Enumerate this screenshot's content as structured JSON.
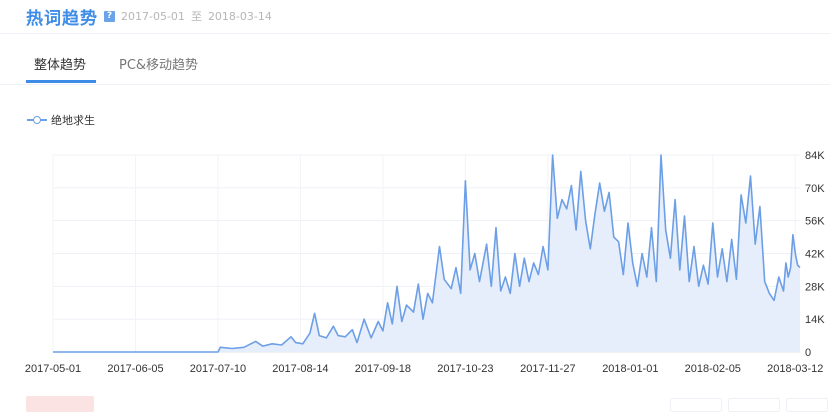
{
  "header": {
    "title": "热词趋势",
    "help_icon": "?",
    "start_date": "2017-05-01",
    "to_text": "至",
    "end_date": "2018-03-14"
  },
  "tabs": [
    {
      "label": "整体趋势",
      "active": true
    },
    {
      "label": "PC&移动趋势",
      "active": false
    }
  ],
  "colors": {
    "accent": "#3d8ce8",
    "series": "#6c9fe6",
    "fill": "#e7eefb"
  },
  "chart_data": {
    "type": "area",
    "title": "",
    "xlabel": "",
    "ylabel": "",
    "x_ticks": [
      "2017-05-01",
      "2017-06-05",
      "2017-07-10",
      "2017-08-14",
      "2017-09-18",
      "2017-10-23",
      "2017-11-27",
      "2018-01-01",
      "2018-02-05",
      "2018-03-12"
    ],
    "y_ticks": [
      "0",
      "14K",
      "28K",
      "42K",
      "56K",
      "70K",
      "84K"
    ],
    "ylim": [
      0,
      84000
    ],
    "xlim": [
      "2017-05-01",
      "2018-03-14"
    ],
    "grid": true,
    "legend": "top-left",
    "series": [
      {
        "name": "绝地求生",
        "values": [
          {
            "x": "2017-05-01",
            "y": 0
          },
          {
            "x": "2017-07-10",
            "y": 0
          },
          {
            "x": "2017-07-11",
            "y": 2000
          },
          {
            "x": "2017-07-16",
            "y": 1500
          },
          {
            "x": "2017-07-21",
            "y": 2000
          },
          {
            "x": "2017-07-26",
            "y": 4500
          },
          {
            "x": "2017-07-29",
            "y": 2500
          },
          {
            "x": "2017-08-02",
            "y": 3500
          },
          {
            "x": "2017-08-06",
            "y": 3000
          },
          {
            "x": "2017-08-10",
            "y": 6500
          },
          {
            "x": "2017-08-12",
            "y": 4000
          },
          {
            "x": "2017-08-15",
            "y": 3500
          },
          {
            "x": "2017-08-18",
            "y": 8000
          },
          {
            "x": "2017-08-20",
            "y": 16500
          },
          {
            "x": "2017-08-22",
            "y": 7000
          },
          {
            "x": "2017-08-25",
            "y": 6000
          },
          {
            "x": "2017-08-28",
            "y": 11000
          },
          {
            "x": "2017-08-30",
            "y": 7000
          },
          {
            "x": "2017-09-02",
            "y": 6500
          },
          {
            "x": "2017-09-05",
            "y": 9500
          },
          {
            "x": "2017-09-07",
            "y": 4000
          },
          {
            "x": "2017-09-10",
            "y": 14000
          },
          {
            "x": "2017-09-13",
            "y": 6000
          },
          {
            "x": "2017-09-16",
            "y": 13000
          },
          {
            "x": "2017-09-18",
            "y": 9000
          },
          {
            "x": "2017-09-20",
            "y": 21000
          },
          {
            "x": "2017-09-22",
            "y": 12000
          },
          {
            "x": "2017-09-24",
            "y": 28000
          },
          {
            "x": "2017-09-26",
            "y": 13000
          },
          {
            "x": "2017-09-28",
            "y": 20000
          },
          {
            "x": "2017-10-01",
            "y": 17000
          },
          {
            "x": "2017-10-03",
            "y": 29000
          },
          {
            "x": "2017-10-05",
            "y": 14000
          },
          {
            "x": "2017-10-07",
            "y": 25000
          },
          {
            "x": "2017-10-09",
            "y": 21000
          },
          {
            "x": "2017-10-12",
            "y": 45000
          },
          {
            "x": "2017-10-14",
            "y": 31000
          },
          {
            "x": "2017-10-17",
            "y": 27000
          },
          {
            "x": "2017-10-19",
            "y": 36000
          },
          {
            "x": "2017-10-21",
            "y": 25000
          },
          {
            "x": "2017-10-23",
            "y": 73000
          },
          {
            "x": "2017-10-25",
            "y": 35000
          },
          {
            "x": "2017-10-27",
            "y": 42000
          },
          {
            "x": "2017-10-29",
            "y": 30000
          },
          {
            "x": "2017-11-01",
            "y": 46000
          },
          {
            "x": "2017-11-03",
            "y": 28000
          },
          {
            "x": "2017-11-05",
            "y": 53000
          },
          {
            "x": "2017-11-07",
            "y": 26000
          },
          {
            "x": "2017-11-09",
            "y": 32000
          },
          {
            "x": "2017-11-11",
            "y": 25000
          },
          {
            "x": "2017-11-13",
            "y": 42000
          },
          {
            "x": "2017-11-15",
            "y": 28000
          },
          {
            "x": "2017-11-17",
            "y": 40000
          },
          {
            "x": "2017-11-19",
            "y": 30000
          },
          {
            "x": "2017-11-21",
            "y": 38000
          },
          {
            "x": "2017-11-23",
            "y": 33000
          },
          {
            "x": "2017-11-25",
            "y": 45000
          },
          {
            "x": "2017-11-27",
            "y": 35000
          },
          {
            "x": "2017-11-29",
            "y": 84000
          },
          {
            "x": "2017-12-01",
            "y": 57000
          },
          {
            "x": "2017-12-03",
            "y": 65000
          },
          {
            "x": "2017-12-05",
            "y": 61000
          },
          {
            "x": "2017-12-07",
            "y": 71000
          },
          {
            "x": "2017-12-09",
            "y": 52000
          },
          {
            "x": "2017-12-11",
            "y": 77000
          },
          {
            "x": "2017-12-13",
            "y": 56000
          },
          {
            "x": "2017-12-15",
            "y": 44000
          },
          {
            "x": "2017-12-17",
            "y": 59000
          },
          {
            "x": "2017-12-19",
            "y": 72000
          },
          {
            "x": "2017-12-21",
            "y": 60000
          },
          {
            "x": "2017-12-23",
            "y": 68000
          },
          {
            "x": "2017-12-25",
            "y": 49000
          },
          {
            "x": "2017-12-27",
            "y": 47000
          },
          {
            "x": "2017-12-29",
            "y": 33000
          },
          {
            "x": "2017-12-31",
            "y": 55000
          },
          {
            "x": "2018-01-02",
            "y": 38000
          },
          {
            "x": "2018-01-04",
            "y": 28000
          },
          {
            "x": "2018-01-06",
            "y": 42000
          },
          {
            "x": "2018-01-08",
            "y": 32000
          },
          {
            "x": "2018-01-10",
            "y": 53000
          },
          {
            "x": "2018-01-12",
            "y": 30000
          },
          {
            "x": "2018-01-14",
            "y": 84000
          },
          {
            "x": "2018-01-16",
            "y": 52000
          },
          {
            "x": "2018-01-18",
            "y": 40000
          },
          {
            "x": "2018-01-20",
            "y": 65000
          },
          {
            "x": "2018-01-22",
            "y": 35000
          },
          {
            "x": "2018-01-24",
            "y": 58000
          },
          {
            "x": "2018-01-26",
            "y": 30000
          },
          {
            "x": "2018-01-28",
            "y": 45000
          },
          {
            "x": "2018-01-30",
            "y": 28000
          },
          {
            "x": "2018-02-01",
            "y": 37000
          },
          {
            "x": "2018-02-03",
            "y": 29000
          },
          {
            "x": "2018-02-05",
            "y": 55000
          },
          {
            "x": "2018-02-07",
            "y": 32000
          },
          {
            "x": "2018-02-09",
            "y": 44000
          },
          {
            "x": "2018-02-11",
            "y": 30000
          },
          {
            "x": "2018-02-13",
            "y": 48000
          },
          {
            "x": "2018-02-15",
            "y": 31000
          },
          {
            "x": "2018-02-17",
            "y": 67000
          },
          {
            "x": "2018-02-19",
            "y": 55000
          },
          {
            "x": "2018-02-21",
            "y": 75000
          },
          {
            "x": "2018-02-23",
            "y": 46000
          },
          {
            "x": "2018-02-25",
            "y": 62000
          },
          {
            "x": "2018-02-27",
            "y": 30000
          },
          {
            "x": "2018-03-01",
            "y": 25000
          },
          {
            "x": "2018-03-03",
            "y": 22000
          },
          {
            "x": "2018-03-05",
            "y": 32000
          },
          {
            "x": "2018-03-07",
            "y": 26000
          },
          {
            "x": "2018-03-08",
            "y": 38000
          },
          {
            "x": "2018-03-09",
            "y": 32000
          },
          {
            "x": "2018-03-10",
            "y": 36000
          },
          {
            "x": "2018-03-11",
            "y": 50000
          },
          {
            "x": "2018-03-12",
            "y": 42000
          },
          {
            "x": "2018-03-13",
            "y": 37000
          },
          {
            "x": "2018-03-14",
            "y": 36000
          }
        ]
      }
    ]
  }
}
